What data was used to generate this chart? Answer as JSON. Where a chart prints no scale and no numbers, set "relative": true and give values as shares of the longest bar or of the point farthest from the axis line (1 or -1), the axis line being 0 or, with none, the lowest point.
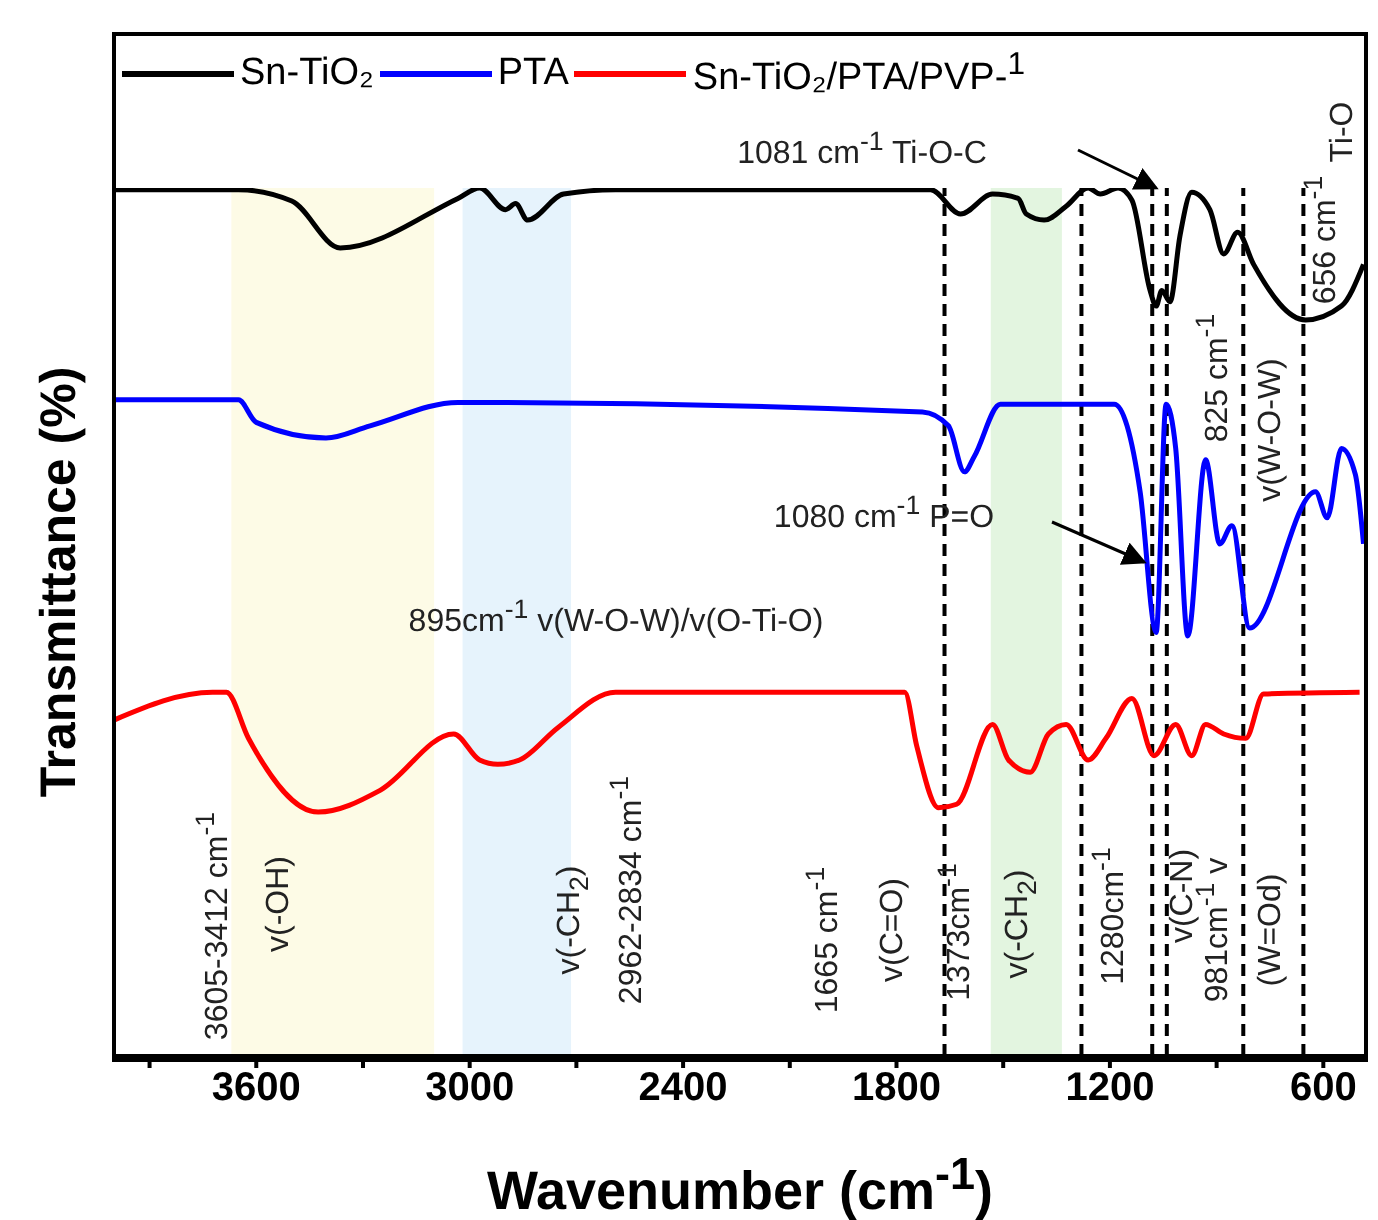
{
  "chart_data": {
    "type": "line",
    "relative": true,
    "xlabel": "Wavenumber (cm$^{-1}$)",
    "ylabel": "Transmittance (%)",
    "xlim": [
      4000,
      480
    ],
    "xticks": [
      {
        "value": 3900,
        "label": null
      },
      3600,
      {
        "value": 3300,
        "label": null
      },
      3000,
      {
        "value": 2700,
        "label": null
      },
      2400,
      {
        "value": 2100,
        "label": null
      },
      1800,
      {
        "value": 1500,
        "label": null
      },
      1200,
      {
        "value": 900,
        "label": null
      },
      600
    ],
    "legend": "top left",
    "line_style": "solid",
    "series": [
      {
        "name": "Sn-TiO₂",
        "color": "#000000",
        "x": [
          4000,
          3650,
          3500,
          3364,
          3033,
          2972,
          2899,
          2871,
          2837,
          2736,
          2590,
          1704,
          1620,
          1530,
          1458,
          1435,
          1385,
          1323,
          1261,
          1227,
          1177,
          1138,
          1087,
          1070,
          1054,
          1031,
          1003,
          970,
          919,
          880,
          841,
          796,
          650,
          549,
          487
        ],
        "values": [
          0.998,
          0.998,
          0.985,
          0.931,
          0.988,
          1.0,
          0.975,
          0.982,
          0.963,
          0.993,
          0.998,
          0.998,
          0.97,
          0.993,
          0.988,
          0.97,
          0.963,
          0.979,
          1.0,
          0.993,
          1.0,
          0.986,
          0.882,
          0.864,
          0.882,
          0.869,
          0.945,
          0.995,
          0.975,
          0.924,
          0.949,
          0.912,
          0.848,
          0.864,
          0.912
        ]
      },
      {
        "name": "PTA",
        "color": "#0000ff",
        "x": [
          4000,
          3650,
          3600,
          3404,
          3280,
          3033,
          1727,
          1654,
          1609,
          1581,
          1508,
          1188,
          1115,
          1070,
          1042,
          1015,
          981,
          931,
          891,
          857,
          807,
          622,
          589,
          549,
          510,
          487
        ],
        "values": [
          0.756,
          0.756,
          0.73,
          0.712,
          0.726,
          0.753,
          0.742,
          0.726,
          0.673,
          0.691,
          0.751,
          0.751,
          0.65,
          0.488,
          0.751,
          0.7,
          0.484,
          0.687,
          0.59,
          0.611,
          0.493,
          0.65,
          0.62,
          0.7,
          0.67,
          0.59
        ]
      },
      {
        "name": "Sn-TiO₂/PTA/PVP-$^{1}$",
        "color": "#ff0000",
        "x": [
          4000,
          3723,
          3684,
          3622,
          3426,
          3252,
          3045,
          2972,
          2921,
          2860,
          2753,
          2590,
          1777,
          1743,
          1682,
          1631,
          1530,
          1485,
          1424,
          1373,
          1323,
          1261,
          1211,
          1138,
          1076,
          1015,
          970,
          931,
          880,
          818,
          768,
          498
        ],
        "values": [
          0.387,
          0.419,
          0.419,
          0.366,
          0.281,
          0.306,
          0.371,
          0.341,
          0.336,
          0.341,
          0.378,
          0.419,
          0.419,
          0.357,
          0.286,
          0.29,
          0.382,
          0.341,
          0.327,
          0.371,
          0.382,
          0.341,
          0.366,
          0.412,
          0.346,
          0.382,
          0.346,
          0.382,
          0.371,
          0.366,
          0.417,
          0.419
        ]
      }
    ],
    "bands": [
      {
        "axis": "x",
        "from": 3670,
        "to": 3100,
        "color": "#fdfbe6"
      },
      {
        "axis": "x",
        "from": 3020,
        "to": 2715,
        "color": "#e6f3fc"
      },
      {
        "axis": "x",
        "from": 1535,
        "to": 1335,
        "color": "#e3f5e0"
      }
    ],
    "ref_lines": [
      {
        "axis": "x",
        "value": 1665,
        "line_style": "dashed"
      },
      {
        "axis": "x",
        "value": 1280,
        "line_style": "dashed"
      },
      {
        "axis": "x",
        "value": 1081,
        "line_style": "dashed"
      },
      {
        "axis": "x",
        "value": 1040,
        "line_style": "dashed"
      },
      {
        "axis": "x",
        "value": 825,
        "line_style": "dashed"
      },
      {
        "axis": "x",
        "value": 656,
        "line_style": "dashed"
      }
    ],
    "annotations": [
      "1081 cm$^{-1}$ Ti-O-C",
      "656 cm$^{-1}$",
      "Ti-O",
      "825 cm$^{-1}$",
      "v(W-O-W)",
      "1080 cm$^{-1}$ P=O",
      "895cm$^{-1}$ v(W-O-W)/v(O-Ti-O)",
      "3605-3412 cm$^{-1}$",
      "v(-OH)",
      "v(-CH$_{2}$)",
      "2962-2834 cm$^{-1}$",
      "1665 cm$^{-1}$",
      "v(C=O)",
      "1373cm$^{-1}$",
      "v(-CH$_{2}$)",
      "1280cm$^{-1}$",
      "v(C-N)",
      "981cm$^{-1}$ v",
      "(W=Od)"
    ]
  }
}
